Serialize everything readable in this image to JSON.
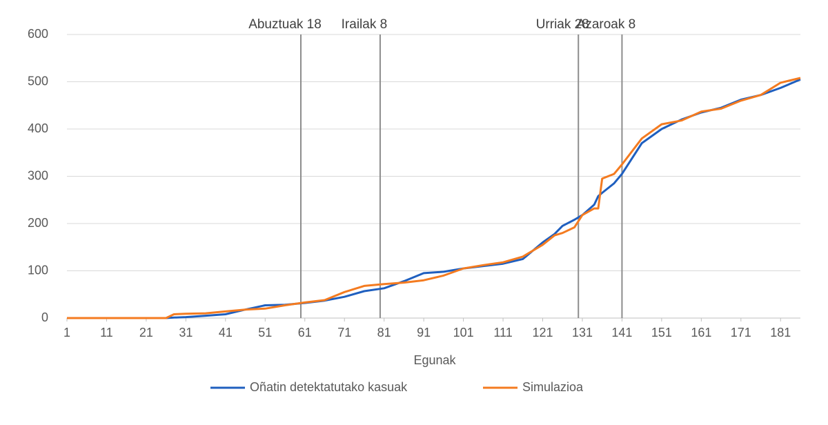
{
  "chart_data": {
    "type": "line",
    "xlabel": "Egunak",
    "x": [
      1,
      6,
      11,
      16,
      21,
      26,
      28,
      31,
      36,
      41,
      46,
      51,
      56,
      61,
      66,
      71,
      76,
      81,
      86,
      91,
      96,
      101,
      106,
      111,
      116,
      121,
      124,
      126,
      129,
      131,
      134,
      135,
      136,
      139,
      141,
      146,
      151,
      156,
      161,
      166,
      171,
      176,
      181,
      186
    ],
    "series": [
      {
        "name": "Oñatin detektatutako kasuak",
        "color": "#1f5fbf",
        "values": [
          0,
          0,
          0,
          0,
          0,
          0,
          1,
          2,
          5,
          8,
          18,
          27,
          28,
          32,
          37,
          45,
          57,
          63,
          78,
          95,
          98,
          105,
          110,
          115,
          125,
          160,
          178,
          195,
          208,
          218,
          240,
          258,
          265,
          285,
          305,
          370,
          400,
          420,
          435,
          445,
          462,
          472,
          487,
          505
        ]
      },
      {
        "name": "Simulazioa",
        "color": "#f47b20",
        "values": [
          0,
          0,
          0,
          0,
          0,
          0,
          8,
          9,
          10,
          14,
          18,
          20,
          27,
          33,
          38,
          55,
          68,
          72,
          75,
          80,
          90,
          105,
          112,
          118,
          130,
          155,
          175,
          180,
          192,
          218,
          232,
          232,
          295,
          305,
          325,
          380,
          410,
          418,
          437,
          443,
          460,
          472,
          498,
          508
        ]
      }
    ],
    "markers": [
      {
        "x": 60,
        "label": "Abuztuak 18"
      },
      {
        "x": 80,
        "label": "Irailak 8"
      },
      {
        "x": 130,
        "label": "Urriak 28"
      },
      {
        "x": 141,
        "label": "Azaroak 8"
      }
    ],
    "xlim": [
      1,
      186
    ],
    "xticks": [
      1,
      11,
      21,
      31,
      41,
      51,
      61,
      71,
      81,
      91,
      101,
      111,
      121,
      131,
      141,
      151,
      161,
      171,
      181
    ],
    "ylim": [
      0,
      600
    ],
    "yticks": [
      0,
      100,
      200,
      300,
      400,
      500,
      600
    ],
    "grid": true,
    "legend": "bottom"
  }
}
